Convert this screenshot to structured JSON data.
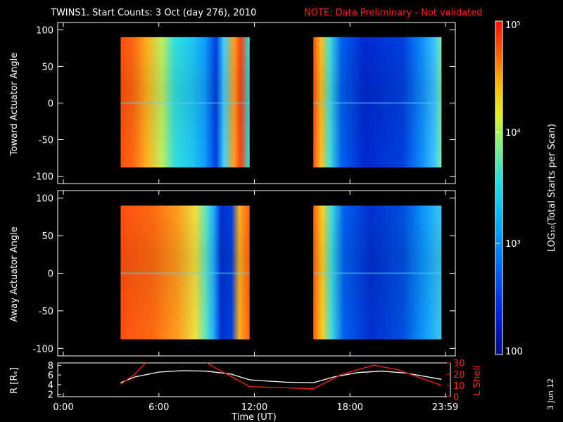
{
  "title": "TWINS1. Start Counts:  3 Oct (day 276), 2010",
  "note": "NOTE: Data Preliminary - Not validated",
  "date_stamp": "3 Jun 12",
  "colors": {
    "background": "#000000",
    "axis": "#ffffff",
    "note": "#ff2020",
    "r_line": "#ffffff",
    "l_shell_line": "#ff2020"
  },
  "colorbar": {
    "label": "LOG₁₀(Total Starts per Scan)",
    "ticks": [
      "10⁵",
      "10⁴",
      "10³",
      "100"
    ],
    "log_range": [
      2,
      5
    ]
  },
  "chart_data": [
    {
      "type": "heatmap",
      "ylabel": "Toward Actuator Angle",
      "ylim": [
        -110,
        110
      ],
      "yticks": [
        "100",
        "50",
        "0",
        "-50",
        "-100"
      ],
      "xlim_hours": [
        0,
        24
      ],
      "data_extent_y": [
        -88,
        90
      ],
      "coverage_hours": [
        [
          3.6,
          11.7
        ],
        [
          15.7,
          23.75
        ]
      ]
    },
    {
      "type": "heatmap",
      "ylabel": "Away Actuator Angle",
      "ylim": [
        -110,
        110
      ],
      "yticks": [
        "100",
        "50",
        "0",
        "-50",
        "-100"
      ],
      "xlim_hours": [
        0,
        24
      ],
      "data_extent_y": [
        -88,
        90
      ],
      "coverage_hours": [
        [
          3.6,
          11.7
        ],
        [
          15.7,
          23.75
        ]
      ]
    },
    {
      "type": "line",
      "ylabel_left": "R [Rₑ]",
      "ylabel_right": "L Shell",
      "ylim_left": [
        1.5,
        8.5
      ],
      "ylim_right": [
        0,
        30
      ],
      "yticks_left": [
        "8",
        "6",
        "4",
        "2"
      ],
      "yticks_right": [
        "30",
        "20",
        "10",
        "0"
      ],
      "xlabel": "Time (UT)",
      "xticks": [
        "0:00",
        "6:00",
        "12:00",
        "18:00",
        "23:59"
      ],
      "xtick_hours": [
        0,
        6,
        12,
        18,
        23.98
      ],
      "series": [
        {
          "name": "R",
          "x": [
            3.6,
            4.5,
            6,
            7.5,
            9,
            10.5,
            11.7,
            12.5,
            14,
            15.7,
            17,
            18.5,
            20,
            21.5,
            23.75
          ],
          "y": [
            4.4,
            5.6,
            6.6,
            6.9,
            6.8,
            6.2,
            5.0,
            4.8,
            4.5,
            4.4,
            5.6,
            6.5,
            6.8,
            6.4,
            5.1
          ]
        },
        {
          "name": "L Shell",
          "x": [
            3.6,
            4.5,
            5.3,
            8.8,
            9.5,
            11.7,
            15.7,
            17.5,
            19.5,
            21,
            23.75
          ],
          "y": [
            11,
            20,
            32,
            32,
            26,
            9,
            7,
            20,
            28,
            24,
            10
          ]
        }
      ]
    }
  ]
}
